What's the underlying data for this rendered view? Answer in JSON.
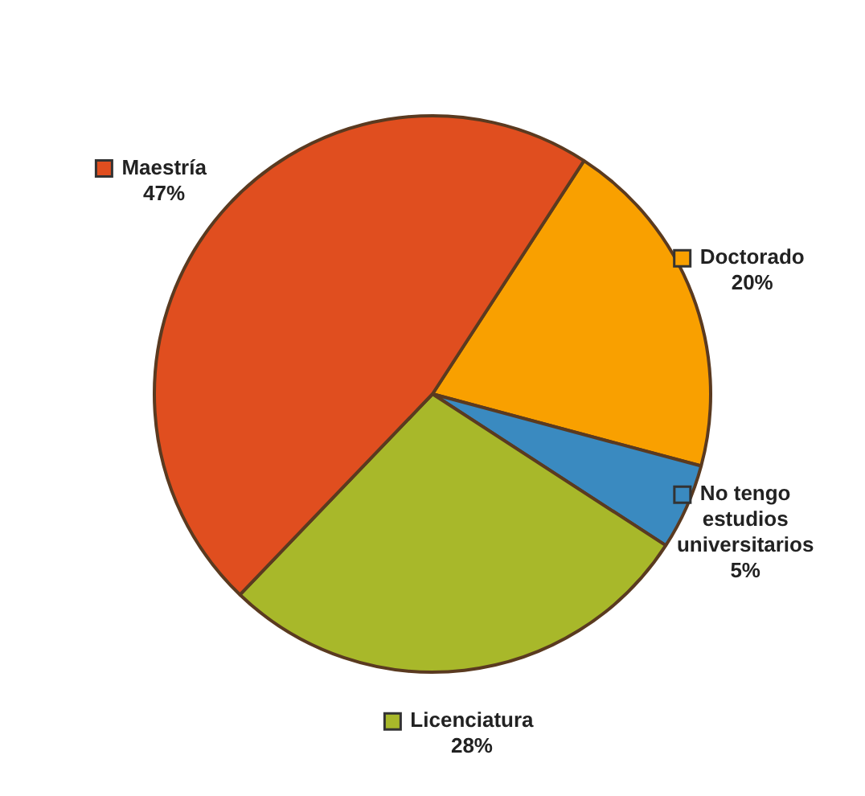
{
  "chart_data": {
    "type": "pie",
    "categories": [
      "Doctorado",
      "No tengo estudios universitarios",
      "Licenciatura",
      "Maestría"
    ],
    "values": [
      20,
      5,
      28,
      47
    ],
    "colors": [
      "#f9a000",
      "#3a8ac0",
      "#a8b82a",
      "#e04e1f"
    ],
    "value_labels": [
      "20%",
      "5%",
      "28%",
      "47%"
    ],
    "legend": "right"
  }
}
